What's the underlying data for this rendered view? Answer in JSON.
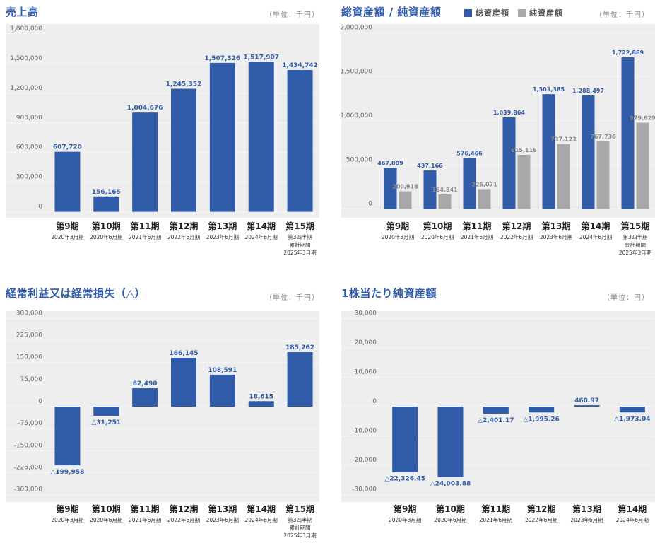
{
  "colors": {
    "primary": "#2f5ba8",
    "secondary": "#a8a8a8",
    "plot_bg": "#eeeeee"
  },
  "panels": {
    "sales": {
      "title": "売上高",
      "unit": "（単位：千円）"
    },
    "assets": {
      "title": "総資産額 / 純資産額",
      "unit": "（単位：千円）",
      "legend": [
        {
          "label": "総資産額"
        },
        {
          "label": "純資産額"
        }
      ]
    },
    "ordinary": {
      "title": "経常利益又は経常損失（△）",
      "unit": "（単位：千円）"
    },
    "bps": {
      "title": "1株当たり純資産額",
      "unit": "（単位：円）"
    }
  },
  "chart_data": [
    {
      "id": "sales",
      "type": "bar",
      "ylim": [
        -60000,
        1900000
      ],
      "yticks": [
        0,
        300000,
        600000,
        900000,
        1200000,
        1500000,
        1800000
      ],
      "ytick_labels": [
        "0",
        "300,000",
        "600,000",
        "900,000",
        "1,200,000",
        "1,500,000",
        "1,800,000"
      ],
      "categories": [
        "第9期",
        "第10期",
        "第11期",
        "第12期",
        "第13期",
        "第14期",
        "第15期"
      ],
      "sublabels": [
        [
          "2020年3月期"
        ],
        [
          "2020年6月期"
        ],
        [
          "2021年6月期"
        ],
        [
          "2022年6月期"
        ],
        [
          "2023年6月期"
        ],
        [
          "2024年6月期"
        ],
        [
          "第3四半期",
          "累計期間",
          "2025年3月期"
        ]
      ],
      "series": [
        {
          "values": [
            607720,
            156165,
            1004676,
            1245352,
            1507326,
            1517907,
            1434742
          ],
          "labels": [
            "607,720",
            "156,165",
            "1,004,676",
            "1,245,352",
            "1,507,326",
            "1,517,907",
            "1,434,742"
          ]
        }
      ]
    },
    {
      "id": "assets",
      "type": "bar",
      "ylim": [
        -100000,
        2100000
      ],
      "yticks": [
        0,
        500000,
        1000000,
        1500000,
        2000000
      ],
      "ytick_labels": [
        "0",
        "500,000",
        "1,000,000",
        "1,500,000",
        "2,000,000"
      ],
      "categories": [
        "第9期",
        "第10期",
        "第11期",
        "第12期",
        "第13期",
        "第14期",
        "第15期"
      ],
      "sublabels": [
        [
          "2020年3月期"
        ],
        [
          "2020年6月期"
        ],
        [
          "2021年6月期"
        ],
        [
          "2022年6月期"
        ],
        [
          "2023年6月期"
        ],
        [
          "2024年6月期"
        ],
        [
          "第3四半期",
          "会計期間",
          "2025年3月期"
        ]
      ],
      "series": [
        {
          "name": "総資産額",
          "values": [
            467809,
            437166,
            576466,
            1039864,
            1303385,
            1288497,
            1722869
          ],
          "labels": [
            "467,809",
            "437,166",
            "576,466",
            "1,039,864",
            "1,303,385",
            "1,288,497",
            "1,722,869"
          ]
        },
        {
          "name": "純資産額",
          "values": [
            200918,
            164841,
            226071,
            615116,
            737123,
            767736,
            979629
          ],
          "labels": [
            "200,918",
            "164,841",
            "226,071",
            "615,116",
            "737,123",
            "767,736",
            "979,629"
          ]
        }
      ]
    },
    {
      "id": "ordinary",
      "type": "bar",
      "ylim": [
        -325000,
        325000
      ],
      "yticks": [
        -300000,
        -225000,
        -150000,
        -75000,
        0,
        75000,
        150000,
        225000,
        300000
      ],
      "ytick_labels": [
        "-300,000",
        "-225,000",
        "-150,000",
        "-75,000",
        "0",
        "75,000",
        "150,000",
        "225,000",
        "300,000"
      ],
      "categories": [
        "第9期",
        "第10期",
        "第11期",
        "第12期",
        "第13期",
        "第14期",
        "第15期"
      ],
      "sublabels": [
        [
          "2020年3月期"
        ],
        [
          "2020年6月期"
        ],
        [
          "2021年6月期"
        ],
        [
          "2022年6月期"
        ],
        [
          "2023年6月期"
        ],
        [
          "2024年6月期"
        ],
        [
          "第3四半期",
          "累計期間",
          "2025年3月期"
        ]
      ],
      "series": [
        {
          "values": [
            -199958,
            -31251,
            62490,
            166145,
            108591,
            18615,
            185262
          ],
          "labels": [
            "△199,958",
            "△31,251",
            "62,490",
            "166,145",
            "108,591",
            "18,615",
            "185,262"
          ]
        }
      ]
    },
    {
      "id": "bps",
      "type": "bar",
      "ylim": [
        -32500,
        32500
      ],
      "yticks": [
        -30000,
        -20000,
        -10000,
        0,
        10000,
        20000,
        30000
      ],
      "ytick_labels": [
        "-30,000",
        "-20,000",
        "-10,000",
        "0",
        "10,000",
        "20,000",
        "30,000"
      ],
      "categories": [
        "第9期",
        "第10期",
        "第11期",
        "第12期",
        "第13期",
        "第14期"
      ],
      "sublabels": [
        [
          "2020年3月期"
        ],
        [
          "2020年6月期"
        ],
        [
          "2021年6月期"
        ],
        [
          "2022年6月期"
        ],
        [
          "2023年6月期"
        ],
        [
          "2024年6月期"
        ]
      ],
      "series": [
        {
          "values": [
            -22326.45,
            -24003.88,
            -2401.17,
            -1995.26,
            460.97,
            -1973.04
          ],
          "labels": [
            "△22,326.45",
            "△24,003.88",
            "△2,401.17",
            "△1,995.26",
            "460.97",
            "△1,973.04"
          ]
        }
      ]
    }
  ]
}
